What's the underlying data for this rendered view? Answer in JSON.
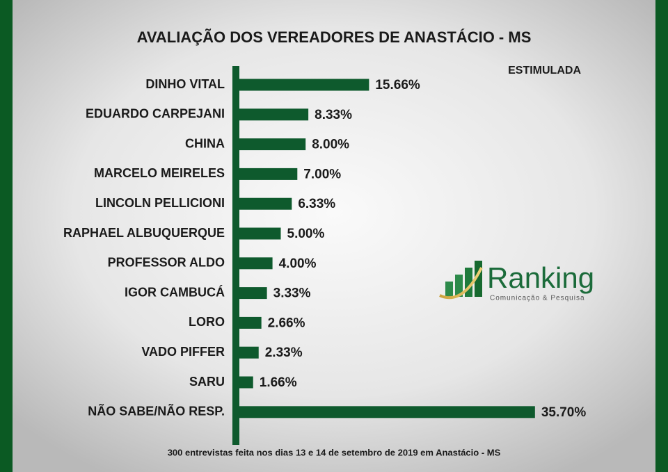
{
  "chart_data": {
    "type": "hbar",
    "title": "AVALIAÇÃO DOS VEREADORES DE ANASTÁCIO - MS",
    "subtitle": "ESTIMULADA",
    "categories": [
      "DINHO VITAL",
      "EDUARDO CARPEJANI",
      "CHINA",
      "MARCELO MEIRELES",
      "LINCOLN PELLICIONI",
      "RAPHAEL ALBUQUERQUE",
      "PROFESSOR ALDO",
      "IGOR CAMBUCÁ",
      "LORO",
      "VADO PIFFER",
      "SARU",
      "NÃO SABE/NÃO RESP."
    ],
    "values": [
      15.66,
      8.33,
      8.0,
      7.0,
      6.33,
      5.0,
      4.0,
      3.33,
      2.66,
      2.33,
      1.66,
      35.7
    ],
    "value_labels": [
      "15.66%",
      "8.33%",
      "8.00%",
      "7.00%",
      "6.33%",
      "5.00%",
      "4.00%",
      "3.33%",
      "2.66%",
      "2.33%",
      "1.66%",
      "35.70%"
    ],
    "color": "#0e5a2d",
    "note": "300 entrevistas feita nos dias 13 e 14 de setembro de 2019 em Anastácio - MS",
    "logo": {
      "name": "Ranking",
      "tagline": "Comunicação & Pesquisa"
    }
  }
}
